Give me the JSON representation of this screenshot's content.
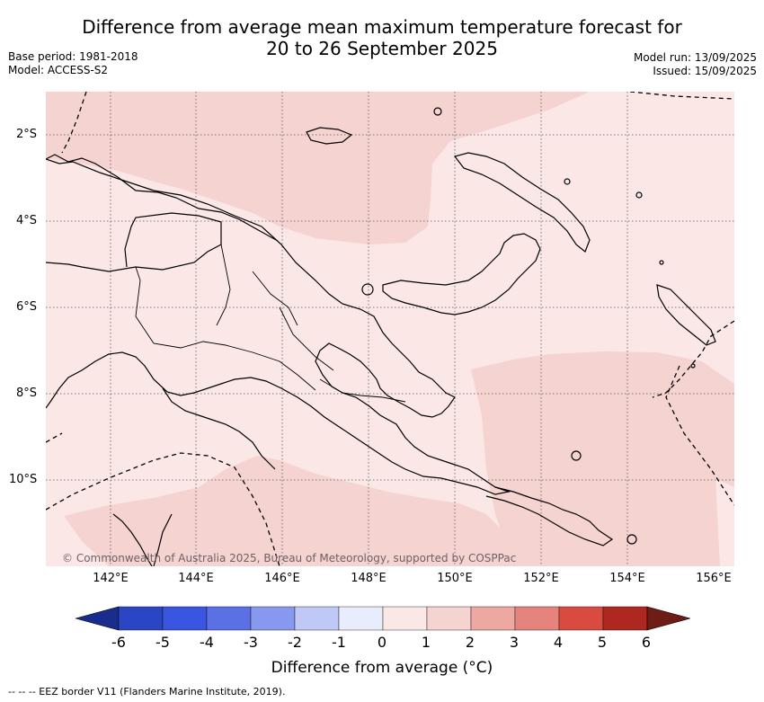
{
  "title": {
    "line1": "Difference from average mean maximum temperature forecast for",
    "line2": "20 to 26 September 2025"
  },
  "meta_left": {
    "base_period": "Base period: 1981-2018",
    "model": "Model: ACCESS-S2"
  },
  "meta_right": {
    "model_run": "Model run: 13/09/2025",
    "issued": "Issued: 15/09/2025"
  },
  "map": {
    "lat_labels": [
      "2°S",
      "4°S",
      "6°S",
      "8°S",
      "10°S"
    ],
    "lon_labels": [
      "142°E",
      "144°E",
      "146°E",
      "148°E",
      "150°E",
      "152°E",
      "154°E",
      "156°E"
    ],
    "copyright": "© Commonwealth of Australia 2025, Bureau of Meteorology, supported by COSPPac",
    "fill_colors": {
      "band_0_1": "#fbe8e6",
      "band_1_2": "#f4d3d1",
      "land_outline": "#000000"
    }
  },
  "colorbar": {
    "ticks": [
      "-6",
      "-5",
      "-4",
      "-3",
      "-2",
      "-1",
      "0",
      "1",
      "2",
      "3",
      "4",
      "5",
      "6"
    ],
    "colors": [
      "#1a2d8c",
      "#2b46c2",
      "#3a55df",
      "#5a71e6",
      "#8799ee",
      "#c0c8f6",
      "#e9ecfb",
      "#fbe8e6",
      "#f4d3d1",
      "#eea8a2",
      "#e5847c",
      "#d94a3f",
      "#ad2821",
      "#6e1c16"
    ],
    "label": "Difference from average (°C)"
  },
  "footnote": "-- -- -- EEZ border V11 (Flanders Marine Institute, 2019)."
}
